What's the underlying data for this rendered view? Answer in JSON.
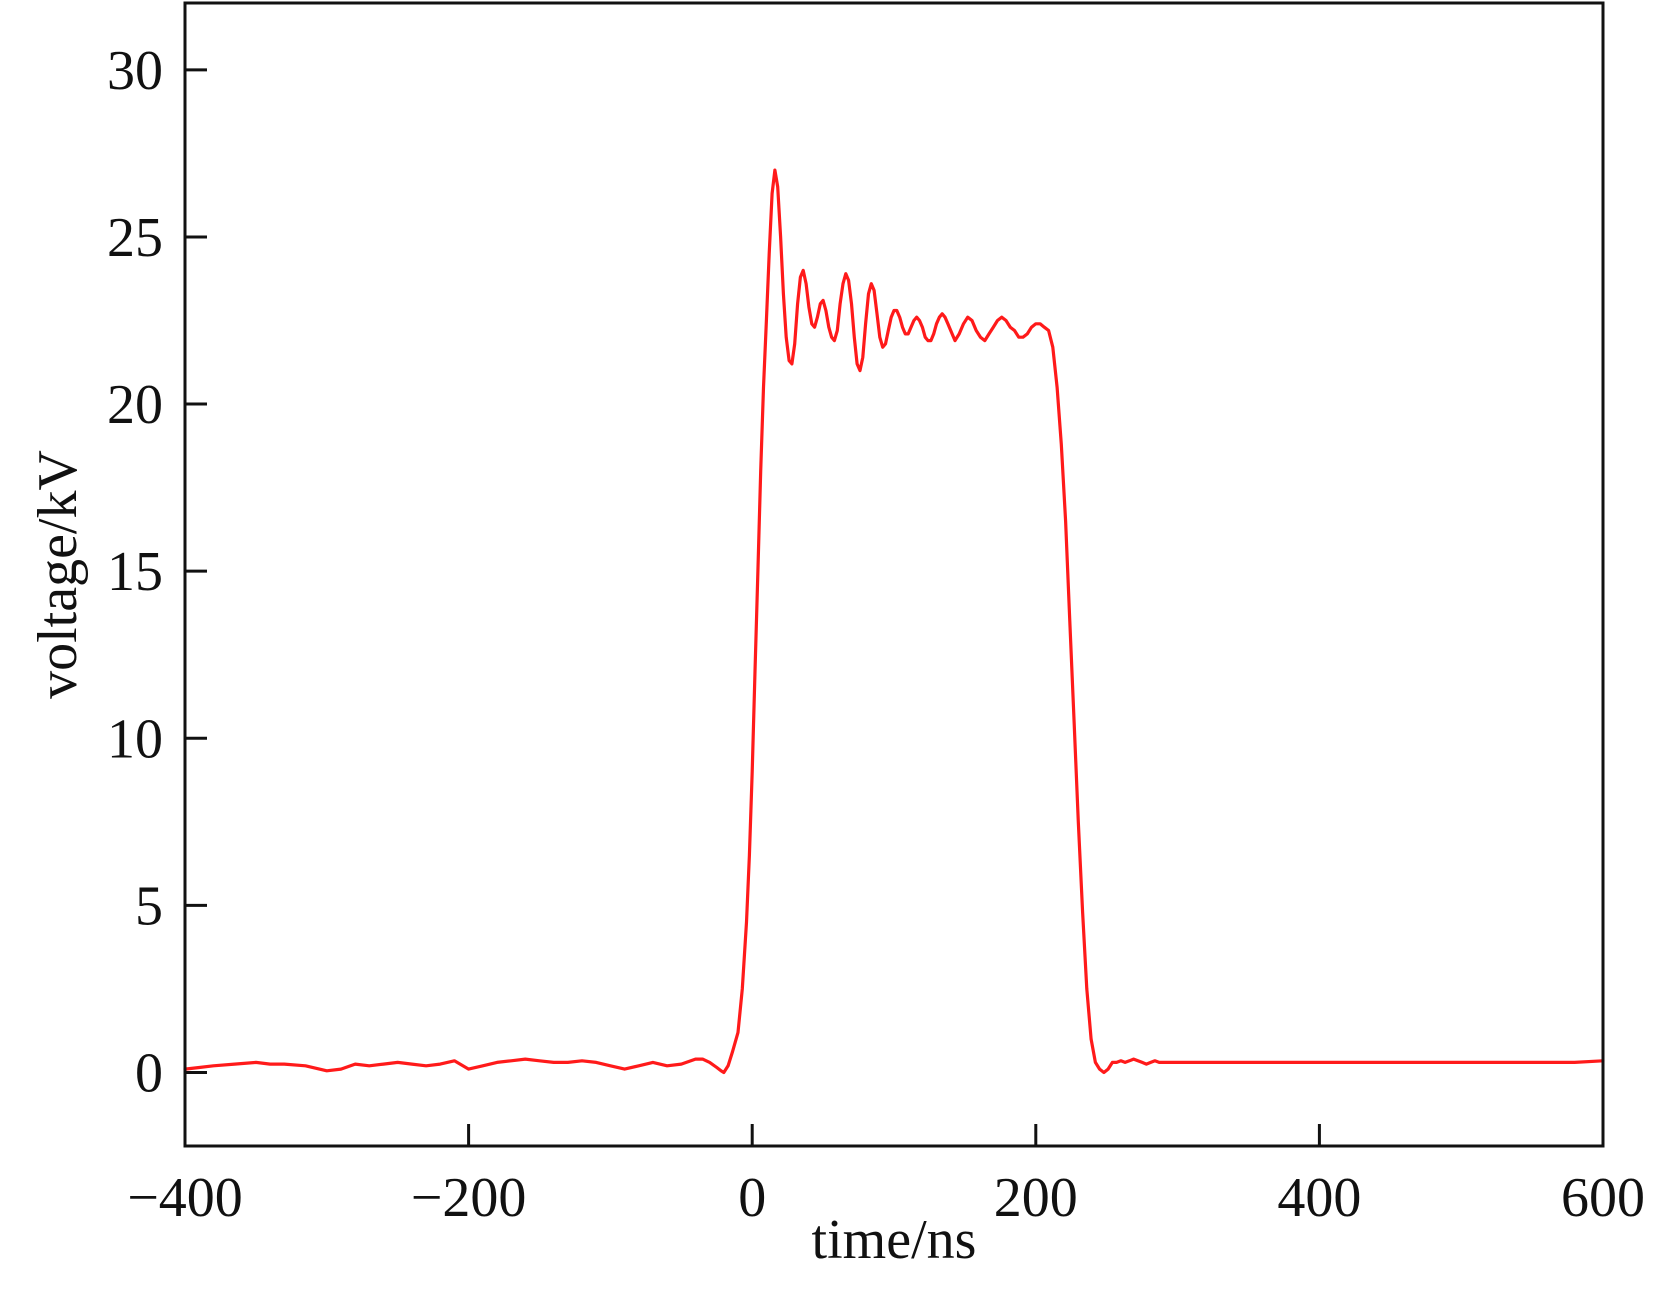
{
  "chart_data": {
    "type": "line",
    "title": "",
    "xlabel": "time/ns",
    "ylabel": "voltage/kV",
    "xlim": [
      -400,
      600
    ],
    "ylim": [
      -2.2,
      32
    ],
    "xticks": [
      -400,
      -200,
      0,
      200,
      400,
      600
    ],
    "xtick_labels": [
      "−400",
      "−200",
      "0",
      "200",
      "400",
      "600"
    ],
    "yticks": [
      0,
      5,
      10,
      15,
      20,
      25,
      30
    ],
    "ytick_labels": [
      "0",
      "5",
      "10",
      "15",
      "20",
      "25",
      "30"
    ],
    "grid": false,
    "legend": "none",
    "series": [
      {
        "color": "#ff1a1a",
        "x": [
          -400,
          -390,
          -380,
          -365,
          -350,
          -340,
          -330,
          -315,
          -300,
          -290,
          -280,
          -270,
          -260,
          -250,
          -240,
          -230,
          -220,
          -210,
          -200,
          -190,
          -180,
          -170,
          -160,
          -150,
          -140,
          -130,
          -120,
          -110,
          -100,
          -90,
          -80,
          -70,
          -60,
          -50,
          -40,
          -35,
          -30,
          -25,
          -22,
          -20,
          -17,
          -14,
          -10,
          -7,
          -4,
          -2,
          0,
          2,
          4,
          6,
          8,
          10,
          12,
          14,
          16,
          18,
          20,
          22,
          24,
          26,
          28,
          30,
          32,
          34,
          36,
          38,
          40,
          42,
          44,
          46,
          48,
          50,
          52,
          54,
          56,
          58,
          60,
          62,
          64,
          66,
          68,
          70,
          72,
          74,
          76,
          78,
          80,
          82,
          84,
          86,
          88,
          90,
          92,
          94,
          96,
          98,
          100,
          102,
          104,
          106,
          108,
          110,
          112,
          114,
          116,
          118,
          120,
          122,
          124,
          126,
          128,
          130,
          132,
          134,
          136,
          138,
          140,
          143,
          146,
          149,
          152,
          155,
          158,
          161,
          164,
          167,
          170,
          173,
          176,
          179,
          182,
          185,
          188,
          191,
          194,
          197,
          200,
          203,
          206,
          209,
          212,
          215,
          218,
          221,
          224,
          227,
          230,
          233,
          236,
          239,
          242,
          245,
          248,
          251,
          254,
          257,
          260,
          263,
          266,
          269,
          272,
          275,
          278,
          281,
          284,
          287,
          290,
          293,
          296,
          299,
          302,
          305,
          308,
          311,
          314,
          318,
          325,
          335,
          345,
          350,
          355,
          360,
          365,
          370,
          380,
          390,
          400,
          420,
          440,
          460,
          480,
          500,
          520,
          540,
          560,
          580,
          600
        ],
        "y": [
          0.1,
          0.15,
          0.2,
          0.25,
          0.3,
          0.25,
          0.25,
          0.2,
          0.05,
          0.1,
          0.25,
          0.2,
          0.25,
          0.3,
          0.25,
          0.2,
          0.25,
          0.35,
          0.1,
          0.2,
          0.3,
          0.35,
          0.4,
          0.35,
          0.3,
          0.3,
          0.35,
          0.3,
          0.2,
          0.1,
          0.2,
          0.3,
          0.2,
          0.25,
          0.4,
          0.4,
          0.3,
          0.15,
          0.05,
          0.0,
          0.2,
          0.6,
          1.2,
          2.5,
          4.5,
          6.5,
          9.0,
          12.0,
          15.0,
          18.0,
          20.5,
          22.5,
          24.5,
          26.3,
          27.0,
          26.5,
          25.0,
          23.3,
          22.0,
          21.3,
          21.2,
          21.8,
          23.0,
          23.8,
          24.0,
          23.6,
          22.9,
          22.4,
          22.3,
          22.6,
          23.0,
          23.1,
          22.8,
          22.3,
          22.0,
          21.9,
          22.2,
          23.0,
          23.6,
          23.9,
          23.7,
          23.0,
          22.0,
          21.2,
          21.0,
          21.4,
          22.4,
          23.3,
          23.6,
          23.4,
          22.7,
          22.0,
          21.7,
          21.8,
          22.2,
          22.6,
          22.8,
          22.8,
          22.6,
          22.3,
          22.1,
          22.1,
          22.3,
          22.5,
          22.6,
          22.5,
          22.3,
          22.0,
          21.9,
          21.9,
          22.1,
          22.4,
          22.6,
          22.7,
          22.6,
          22.4,
          22.2,
          21.9,
          22.1,
          22.4,
          22.6,
          22.5,
          22.2,
          22.0,
          21.9,
          22.1,
          22.3,
          22.5,
          22.6,
          22.5,
          22.3,
          22.2,
          22.0,
          22.0,
          22.1,
          22.3,
          22.4,
          22.4,
          22.3,
          22.2,
          21.7,
          20.5,
          18.8,
          16.5,
          13.5,
          10.5,
          7.5,
          4.8,
          2.5,
          1.0,
          0.3,
          0.1,
          0.0,
          0.1,
          0.3,
          0.3,
          0.35,
          0.3,
          0.35,
          0.4,
          0.35,
          0.3,
          0.25,
          0.3,
          0.35,
          0.3,
          0.3,
          0.3,
          0.3,
          0.3,
          0.3,
          0.3,
          0.3,
          0.3,
          0.3,
          0.3,
          0.3,
          0.3,
          0.3,
          0.3,
          0.3,
          0.3,
          0.3,
          0.3,
          0.3,
          0.3,
          0.3,
          0.3,
          0.3,
          0.3,
          0.3,
          0.3,
          0.3,
          0.3,
          0.3,
          0.3,
          0.35
        ]
      }
    ]
  }
}
